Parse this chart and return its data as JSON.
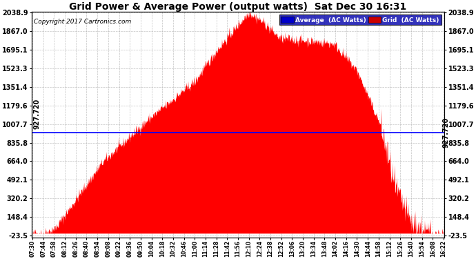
{
  "title": "Grid Power & Average Power (output watts)  Sat Dec 30 16:31",
  "copyright": "Copyright 2017 Cartronics.com",
  "legend_items": [
    {
      "label": "Average  (AC Watts)",
      "facecolor": "#0000cc"
    },
    {
      "label": "Grid  (AC Watts)",
      "facecolor": "#cc0000"
    }
  ],
  "avg_value": 927.72,
  "avg_label": "927.720",
  "ymin": -23.5,
  "ymax": 2038.9,
  "yticks": [
    2038.9,
    1867.0,
    1695.1,
    1523.3,
    1351.4,
    1179.6,
    1007.7,
    835.8,
    664.0,
    492.1,
    320.2,
    148.4,
    -23.5
  ],
  "xtick_labels": [
    "07:30",
    "07:44",
    "07:58",
    "08:12",
    "08:26",
    "08:40",
    "08:54",
    "09:08",
    "09:22",
    "09:36",
    "09:50",
    "10:04",
    "10:18",
    "10:32",
    "10:46",
    "11:00",
    "11:14",
    "11:28",
    "11:42",
    "11:56",
    "12:10",
    "12:24",
    "12:38",
    "12:52",
    "13:06",
    "13:20",
    "13:34",
    "13:48",
    "14:02",
    "14:16",
    "14:30",
    "14:44",
    "14:58",
    "15:12",
    "15:26",
    "15:40",
    "15:54",
    "16:08",
    "16:22"
  ],
  "background_color": "#ffffff",
  "grid_color": "#aaaaaa",
  "fill_color": "#ff0000",
  "line_color": "#0000ff"
}
